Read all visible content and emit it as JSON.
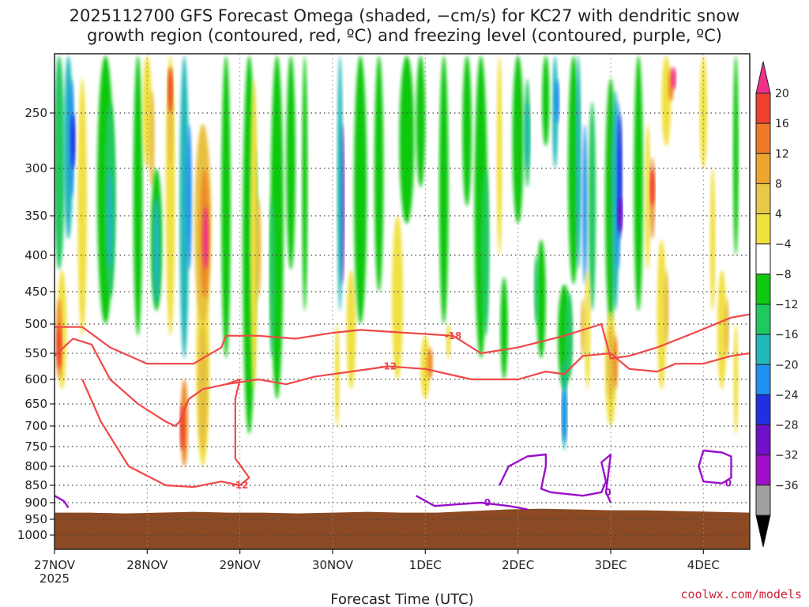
{
  "chart_data": {
    "type": "heatmap",
    "title_line1": "2025112700 GFS Forecast Omega (shaded, −cm/s) for KC27 with dendritic snow",
    "title_line2": "growth region (contoured, red, ºC) and freezing level (contoured, purple, ºC)",
    "xlabel": "Forecast Time (UTC)",
    "ylabel": "",
    "x_ticks": [
      "27NOV",
      "28NOV",
      "29NOV",
      "30NOV",
      "1DEC",
      "2DEC",
      "3DEC",
      "4DEC"
    ],
    "x_year": "2025",
    "xlim": [
      0,
      7.5
    ],
    "y_ticks": [
      250,
      300,
      350,
      400,
      450,
      500,
      550,
      600,
      650,
      700,
      750,
      800,
      850,
      900,
      950,
      1000
    ],
    "ylim_hPa": [
      1050,
      200
    ],
    "ground_hPa": 930,
    "colorbar": {
      "labels": [
        "20",
        "16",
        "12",
        "8",
        "4",
        "−4",
        "−8",
        "−12",
        "−16",
        "−20",
        "−24",
        "−28",
        "−32",
        "−36"
      ],
      "colors": [
        "#f0308a",
        "#f04030",
        "#ee7a28",
        "#eea530",
        "#e8c848",
        "#f0e040",
        "#ffffff",
        "#10c810",
        "#20c860",
        "#20b8b8",
        "#2090f0",
        "#2030e0",
        "#7010c8",
        "#a010c8",
        "#a0a0a0",
        "#000000"
      ]
    },
    "contours": {
      "dgz_red": [
        {
          "label": "-18",
          "pts": [
            [
              0,
              505
            ],
            [
              0.3,
              505
            ],
            [
              0.6,
              540
            ],
            [
              1,
              570
            ],
            [
              1.5,
              570
            ],
            [
              1.8,
              540
            ],
            [
              1.85,
              520
            ],
            [
              2.2,
              520
            ],
            [
              2.6,
              525
            ],
            [
              3,
              515
            ],
            [
              3.3,
              510
            ],
            [
              3.8,
              515
            ],
            [
              4.3,
              520
            ],
            [
              4.6,
              550
            ],
            [
              5,
              540
            ],
            [
              5.5,
              520
            ],
            [
              5.9,
              500
            ],
            [
              6,
              560
            ],
            [
              6.2,
              555
            ],
            [
              6.5,
              540
            ],
            [
              6.9,
              515
            ],
            [
              7.3,
              490
            ],
            [
              7.5,
              485
            ]
          ]
        },
        {
          "label": "-12",
          "pts": [
            [
              0,
              555
            ],
            [
              0.2,
              525
            ],
            [
              0.4,
              535
            ],
            [
              0.6,
              600
            ],
            [
              0.9,
              650
            ],
            [
              1.2,
              690
            ],
            [
              1.3,
              700
            ],
            [
              1.35,
              690
            ],
            [
              1.45,
              640
            ],
            [
              1.6,
              620
            ],
            [
              1.85,
              610
            ],
            [
              2.2,
              600
            ],
            [
              2.5,
              610
            ],
            [
              2.8,
              595
            ],
            [
              3.2,
              585
            ],
            [
              3.6,
              575
            ],
            [
              4,
              580
            ],
            [
              4.5,
              600
            ],
            [
              5,
              600
            ],
            [
              5.3,
              585
            ],
            [
              5.5,
              590
            ],
            [
              5.7,
              555
            ],
            [
              6,
              550
            ],
            [
              6.2,
              580
            ],
            [
              6.5,
              585
            ],
            [
              6.7,
              570
            ],
            [
              7,
              570
            ],
            [
              7.3,
              555
            ],
            [
              7.5,
              550
            ]
          ]
        },
        {
          "label": "-12",
          "pts": [
            [
              0.3,
              600
            ],
            [
              0.5,
              690
            ],
            [
              0.8,
              800
            ],
            [
              1.2,
              850
            ],
            [
              1.5,
              855
            ],
            [
              1.8,
              840
            ],
            [
              2.0,
              850
            ],
            [
              2.1,
              830
            ],
            [
              1.95,
              780
            ],
            [
              1.95,
              640
            ],
            [
              2.0,
              600
            ],
            [
              1.85,
              610
            ]
          ]
        }
      ],
      "freezing_purple": [
        {
          "label": "0",
          "pts": [
            [
              4.8,
              850
            ],
            [
              4.9,
              800
            ],
            [
              5.1,
              775
            ],
            [
              5.3,
              770
            ],
            [
              5.3,
              800
            ],
            [
              5.25,
              860
            ],
            [
              5.35,
              870
            ],
            [
              5.7,
              880
            ],
            [
              5.9,
              870
            ],
            [
              5.95,
              840
            ],
            [
              5.9,
              790
            ],
            [
              6.0,
              770
            ],
            [
              5.95,
              870
            ],
            [
              6.0,
              900
            ]
          ]
        },
        {
          "label": "0",
          "pts": [
            [
              3.9,
              880
            ],
            [
              4.1,
              910
            ],
            [
              4.35,
              905
            ],
            [
              4.6,
              900
            ],
            [
              4.9,
              910
            ],
            [
              5.1,
              920
            ]
          ]
        },
        {
          "label": "0",
          "pts": [
            [
              7.0,
              760
            ],
            [
              7.2,
              765
            ],
            [
              7.3,
              775
            ],
            [
              7.3,
              830
            ],
            [
              7.2,
              845
            ],
            [
              7.0,
              840
            ],
            [
              6.95,
              800
            ],
            [
              7.0,
              760
            ]
          ]
        },
        {
          "label": "",
          "pts": [
            [
              0,
              880
            ],
            [
              0.1,
              895
            ],
            [
              0.15,
              915
            ]
          ]
        }
      ]
    }
  },
  "credit": "coolwx.com/models"
}
